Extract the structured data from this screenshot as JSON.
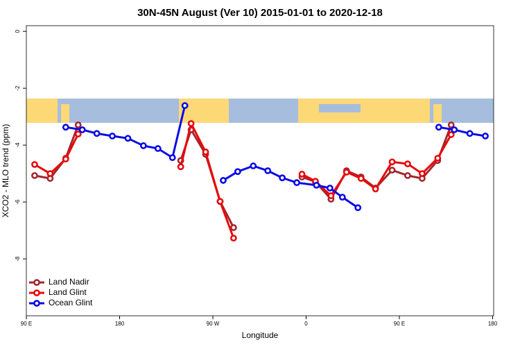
{
  "chart_data": {
    "type": "line",
    "title": "30N-45N August (Ver 10)   2015-01-01 to 2020-12-18",
    "x_label": "Longitude",
    "y_label": "XCO2 - MLO trend (ppm)",
    "xlim": [
      90,
      541
    ],
    "ylim": [
      -10,
      0.2
    ],
    "xticks": [
      {
        "value": 90,
        "label": "90 E"
      },
      {
        "value": 180,
        "label": "180"
      },
      {
        "value": 270,
        "label": "90 W"
      },
      {
        "value": 360,
        "label": "0"
      },
      {
        "value": 450,
        "label": "90 E"
      },
      {
        "value": 540,
        "label": "180"
      }
    ],
    "yticks": [
      0,
      -2,
      -4,
      -6,
      -8
    ],
    "legend": "bottom-left",
    "series": [
      {
        "name": "Land Nadir",
        "color": "#a3272e",
        "x": [
          98,
          113,
          128,
          140,
          null,
          239,
          249,
          263,
          277,
          290,
          null,
          356,
          369,
          384,
          399,
          413,
          427,
          443,
          458,
          472,
          487,
          500
        ],
        "values": [
          -5.07,
          -5.17,
          -4.46,
          -3.29,
          null,
          -4.54,
          -3.46,
          -4.32,
          -5.98,
          -6.9,
          null,
          -5.12,
          -5.29,
          -5.9,
          -4.9,
          -5.12,
          -5.51,
          -4.88,
          -5.07,
          -5.17,
          -4.54,
          -3.29
        ]
      },
      {
        "name": "Land Glint",
        "color": "#e8090c",
        "x": [
          98,
          113,
          128,
          140,
          null,
          239,
          249,
          263,
          277,
          290,
          null,
          356,
          369,
          384,
          399,
          413,
          427,
          443,
          458,
          472,
          487,
          500
        ],
        "values": [
          -4.68,
          -5.0,
          -4.49,
          -3.61,
          null,
          -4.76,
          -3.24,
          -4.24,
          -5.98,
          -7.27,
          null,
          -5.02,
          -5.27,
          -5.78,
          -4.95,
          -5.17,
          -5.54,
          -4.59,
          -4.66,
          -5.0,
          -4.46,
          -3.63
        ]
      },
      {
        "name": "Ocean Glint",
        "color": "#0a0ae6",
        "x": [
          128,
          144,
          158,
          173,
          188,
          203,
          217,
          231,
          243,
          null,
          280,
          294,
          309,
          323,
          337,
          351,
          370,
          383,
          395,
          410,
          null,
          488,
          503,
          518,
          533
        ],
        "values": [
          -3.37,
          -3.46,
          -3.59,
          -3.68,
          -3.76,
          -4.02,
          -4.12,
          -4.44,
          -2.61,
          null,
          -5.24,
          -4.93,
          -4.73,
          -4.9,
          -5.15,
          -5.32,
          -5.41,
          -5.51,
          -5.83,
          -6.2,
          null,
          -3.37,
          -3.46,
          -3.59,
          -3.68
        ]
      }
    ]
  }
}
